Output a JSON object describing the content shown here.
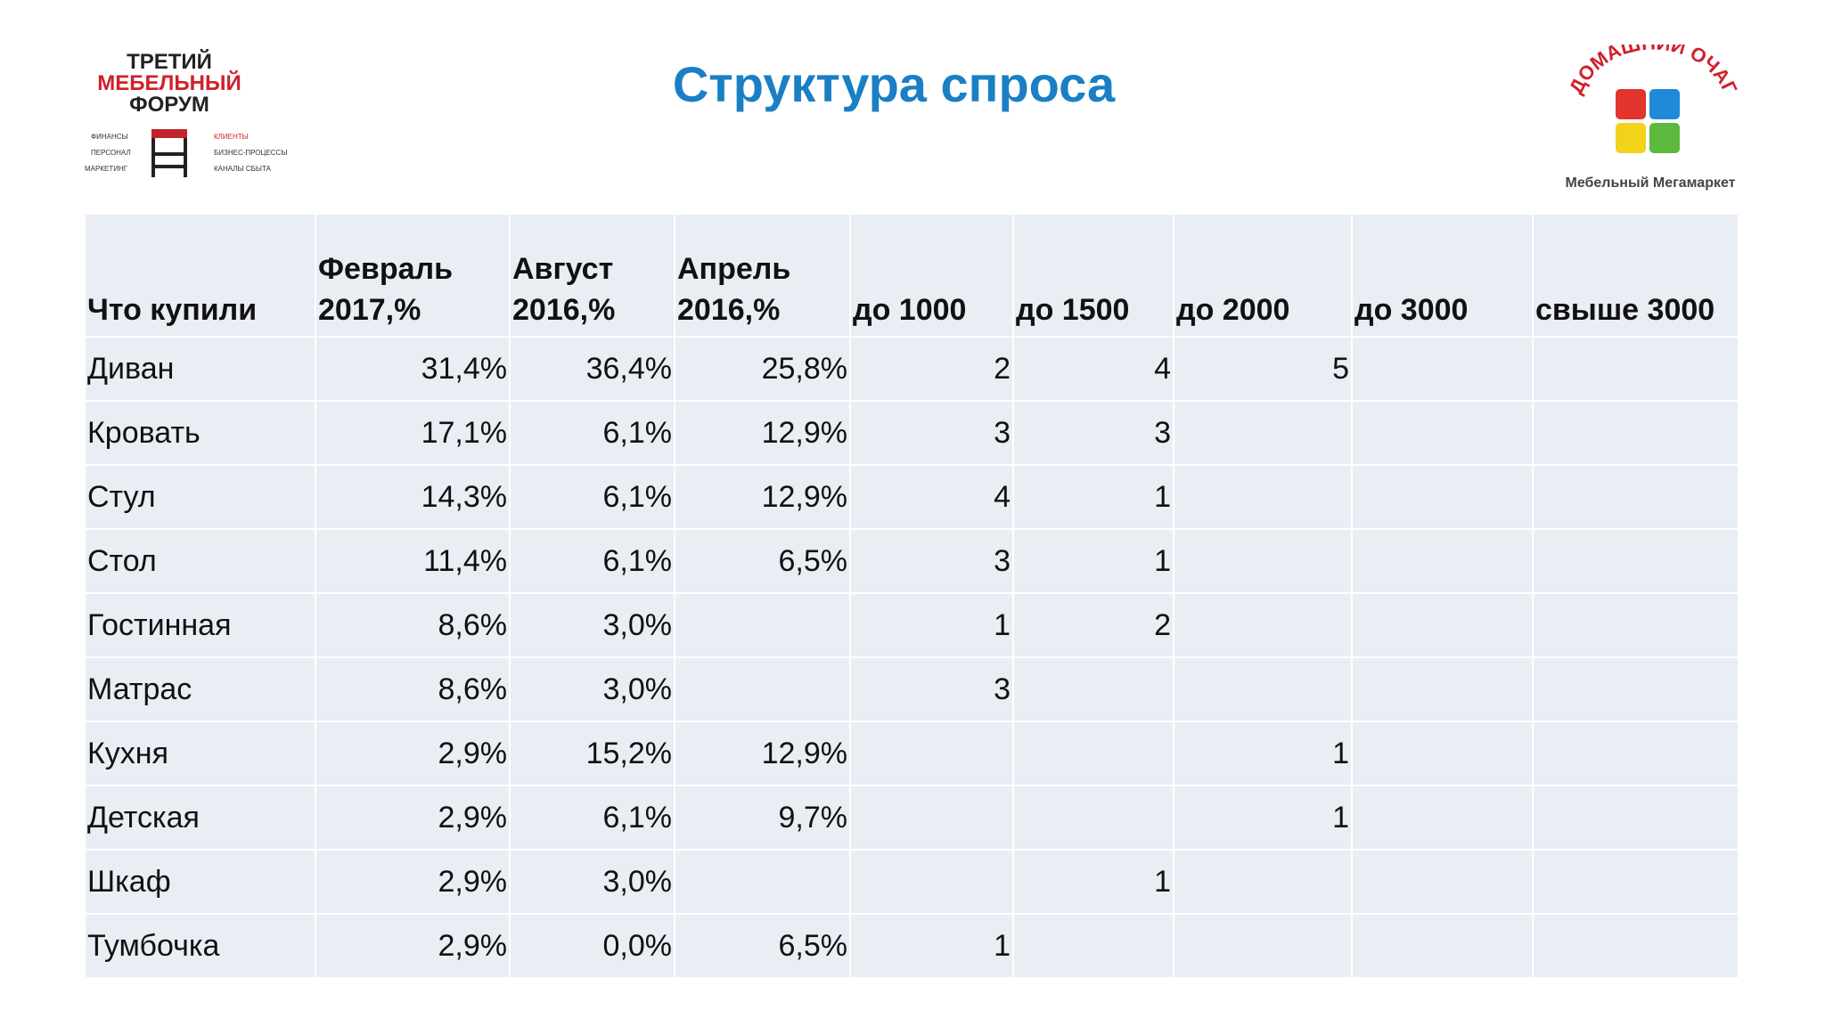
{
  "header": {
    "title": "Структура спроса"
  },
  "logo_left": {
    "lines": [
      "ТРЕТИЙ",
      "МЕБЕЛЬНЫЙ",
      "ФОРУМ"
    ],
    "left_labels": [
      "ФИНАНСЫ",
      "ПЕРСОНАЛ",
      "МАРКЕТИНГ"
    ],
    "right_labels": [
      "КЛИЕНТЫ",
      "БИЗНЕС-ПРОЦЕССЫ",
      "КАНАЛЫ СБЫТА"
    ]
  },
  "logo_right": {
    "name": "ДОМАШНИЙ ОЧАГ",
    "tagline": "Мебельный Мегамаркет"
  },
  "table": {
    "columns": [
      "Что купили",
      "Февраль 2017,%",
      "Август 2016,%",
      "Апрель 2016,%",
      "до 1000",
      "до 1500",
      "до 2000",
      "до 3000",
      "свыше 3000"
    ],
    "rows": [
      [
        "Диван",
        "31,4%",
        "36,4%",
        "25,8%",
        2,
        4,
        5,
        null,
        null
      ],
      [
        "Кровать",
        "17,1%",
        "6,1%",
        "12,9%",
        3,
        3,
        null,
        null,
        null
      ],
      [
        "Стул",
        "14,3%",
        "6,1%",
        "12,9%",
        4,
        1,
        null,
        null,
        null
      ],
      [
        "Стол",
        "11,4%",
        "6,1%",
        "6,5%",
        3,
        1,
        null,
        null,
        null
      ],
      [
        "Гостинная",
        "8,6%",
        "3,0%",
        null,
        1,
        2,
        null,
        null,
        null
      ],
      [
        "Матрас",
        "8,6%",
        "3,0%",
        null,
        3,
        null,
        null,
        null,
        null
      ],
      [
        "Кухня",
        "2,9%",
        "15,2%",
        "12,9%",
        null,
        null,
        1,
        null,
        null
      ],
      [
        "Детская",
        "2,9%",
        "6,1%",
        "9,7%",
        null,
        null,
        1,
        null,
        null
      ],
      [
        "Шкаф",
        "2,9%",
        "3,0%",
        null,
        null,
        1,
        null,
        null,
        null
      ],
      [
        "Тумбочка",
        "2,9%",
        "0,0%",
        "6,5%",
        1,
        null,
        null,
        null,
        null
      ]
    ]
  }
}
